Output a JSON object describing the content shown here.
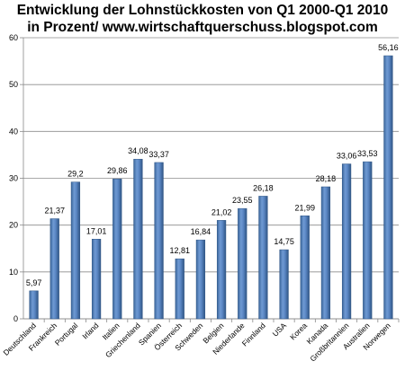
{
  "chart_data": {
    "type": "bar",
    "title_line1": "Entwicklung der Lohnstückkosten von Q1 2000-Q1 2010",
    "title_line2": "in Prozent/ www.wirtschaftquerschuss.blogspot.com",
    "categories": [
      "Deutschland",
      "Frankreich",
      "Portugal",
      "Irland",
      "Italien",
      "Griechenland",
      "Spanien",
      "Österreich",
      "Schweden",
      "Belgien",
      "Niederlande",
      "Finnland",
      "USA",
      "Korea",
      "Kanada",
      "Großbritannien",
      "Australien",
      "Norwegen"
    ],
    "values": [
      5.97,
      21.37,
      29.2,
      17.01,
      29.86,
      34.08,
      33.37,
      12.81,
      16.84,
      21.02,
      23.55,
      26.18,
      14.75,
      21.99,
      28.18,
      33.06,
      33.53,
      56.16
    ],
    "value_labels": [
      "5,97",
      "21,37",
      "29,2",
      "17,01",
      "29,86",
      "34,08",
      "33,37",
      "12,81",
      "16,84",
      "21,02",
      "23,55",
      "26,18",
      "14,75",
      "21,99",
      "28,18",
      "33,06",
      "33,53",
      "56,16"
    ],
    "ylim": [
      0,
      60
    ],
    "yticks": [
      "0",
      "10",
      "20",
      "30",
      "40",
      "50",
      "60"
    ],
    "grid": true,
    "bar_color": "#4F81BD",
    "xlabel": "",
    "ylabel": ""
  }
}
